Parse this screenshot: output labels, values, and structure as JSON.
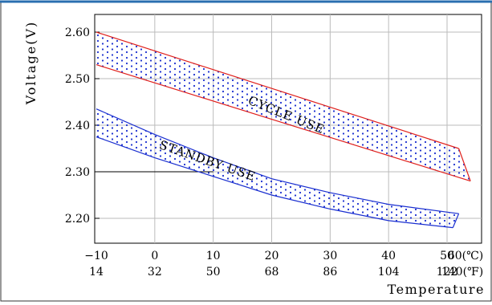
{
  "chart_data": {
    "type": "area",
    "title": "",
    "ylabel": "Voltage(V)",
    "xlabel": "Temperature",
    "xlim": [
      -10,
      60
    ],
    "ylim": [
      2.15,
      2.63
    ],
    "grid": true,
    "x_ticks_c": [
      "−10",
      "0",
      "10",
      "20",
      "30",
      "40",
      "50",
      "60(℃)"
    ],
    "x_ticks_f": [
      "14",
      "32",
      "50",
      "68",
      "86",
      "104",
      "122",
      "140(℉)"
    ],
    "y_ticks": [
      "2.60",
      "2.50",
      "2.40",
      "2.30",
      "2.20"
    ],
    "series": [
      {
        "name": "CYCLE USE",
        "color": "#e0201c",
        "fill_dots": "#1a2fd0",
        "upper": [
          [
            -10,
            2.6
          ],
          [
            52,
            2.35
          ]
        ],
        "lower": [
          [
            -10,
            2.53
          ],
          [
            54,
            2.28
          ]
        ]
      },
      {
        "name": "STANDBY USE",
        "color": "#1a2fd0",
        "fill_dots": "#1a2fd0",
        "upper": [
          [
            -10,
            2.435
          ],
          [
            0,
            2.38
          ],
          [
            10,
            2.33
          ],
          [
            20,
            2.285
          ],
          [
            30,
            2.255
          ],
          [
            40,
            2.23
          ],
          [
            52,
            2.21
          ]
        ],
        "lower": [
          [
            -10,
            2.375
          ],
          [
            0,
            2.33
          ],
          [
            10,
            2.29
          ],
          [
            20,
            2.25
          ],
          [
            30,
            2.22
          ],
          [
            40,
            2.195
          ],
          [
            51,
            2.18
          ]
        ]
      }
    ],
    "reference_line": {
      "y": 2.3,
      "x_from": -10,
      "x_to": 10
    }
  },
  "colors": {
    "frame_top": "#2a6fb0",
    "grid": "#bbbbbb",
    "axis": "#000000"
  }
}
